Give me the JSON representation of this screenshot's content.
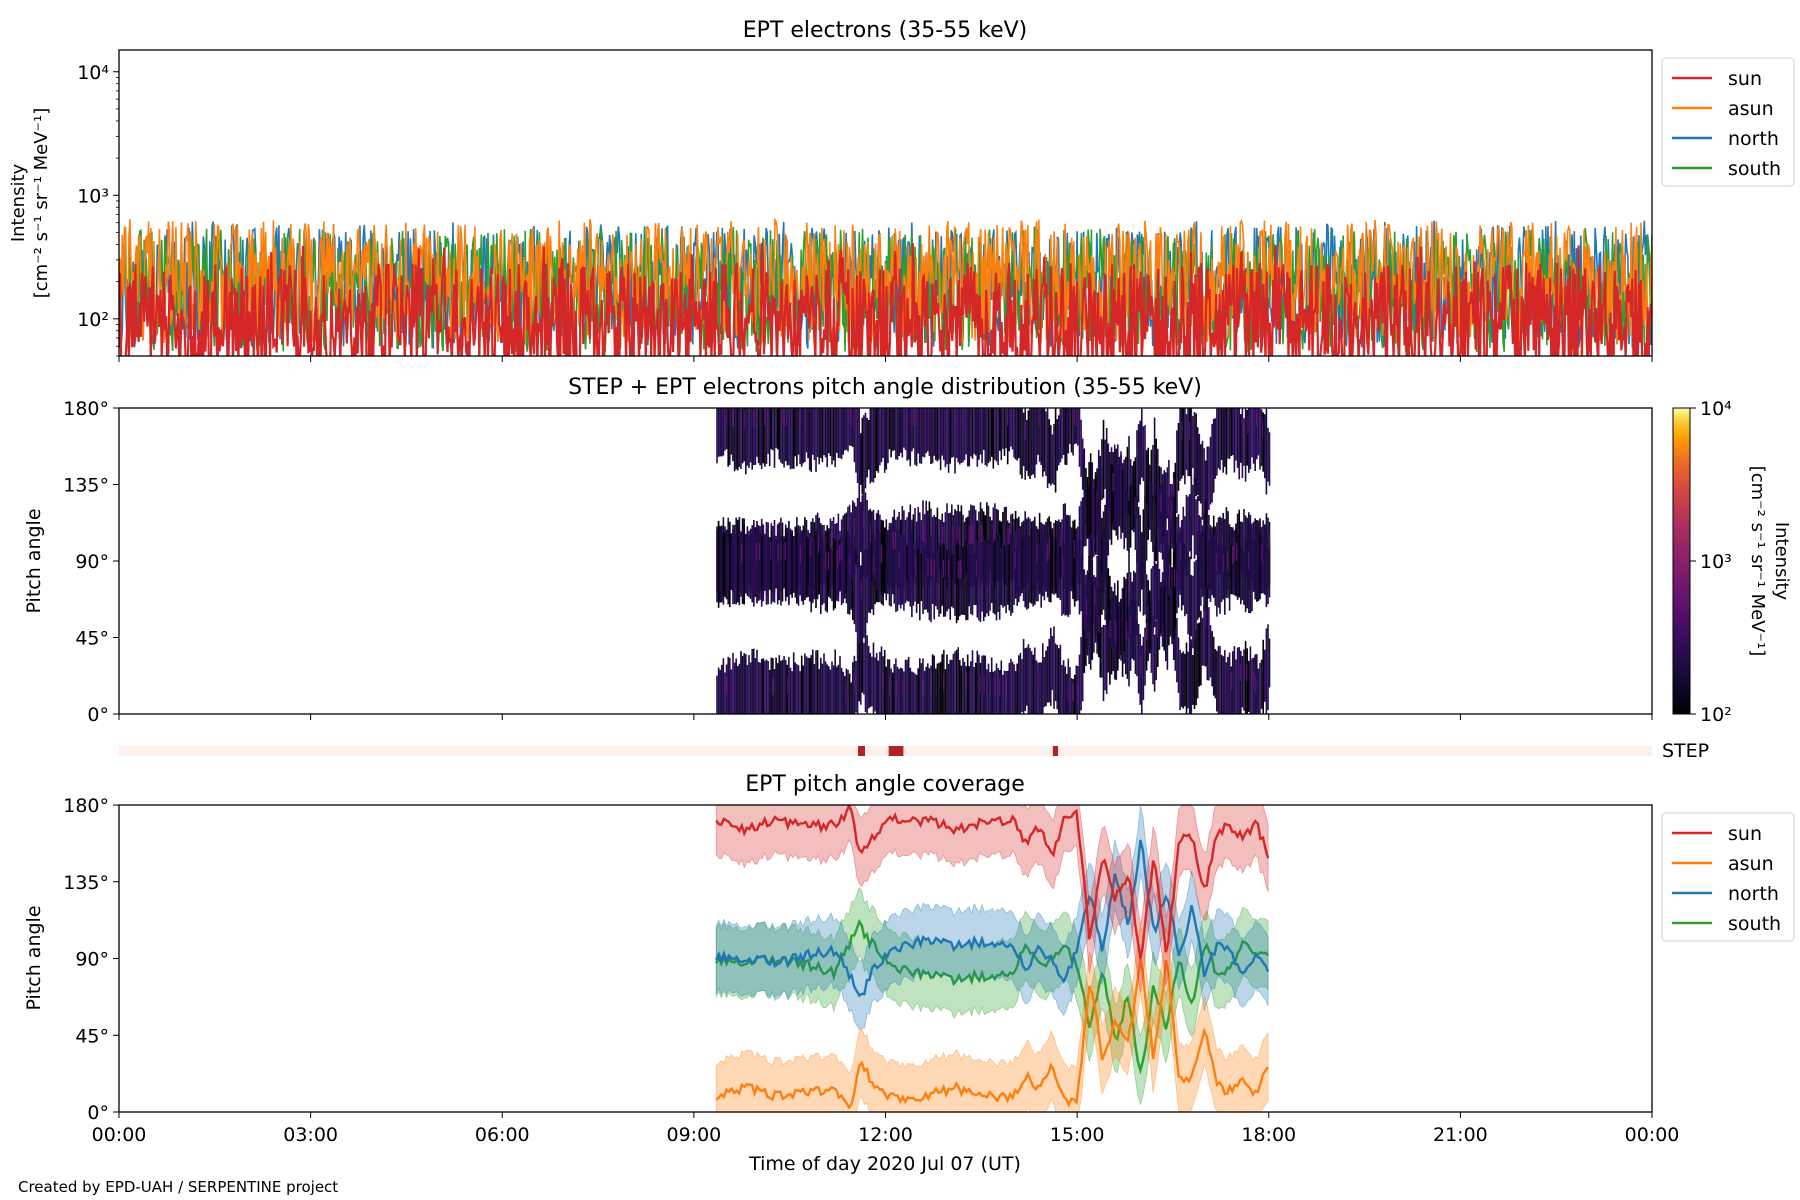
{
  "credit": "Created by EPD-UAH / SERPENTINE project",
  "colors": {
    "sun": "#d62728",
    "asun": "#ff7f0e",
    "north": "#1f77b4",
    "south": "#2ca02c",
    "step_bar": "#b22222",
    "step_bg": "#fdf0ec"
  },
  "chart_data": [
    {
      "type": "line",
      "title": "EPT electrons (35-55 keV)",
      "ylabel_line1": "Intensity",
      "ylabel_line2": "[cm⁻² s⁻¹ sr⁻¹ MeV⁻¹]",
      "yscale": "log",
      "ylim": [
        50,
        15000
      ],
      "yticks": [
        100,
        1000,
        10000
      ],
      "ytick_labels": [
        "10²",
        "10³",
        "10⁴"
      ],
      "xlim_hours": [
        0,
        24
      ],
      "legend_placement": "outside-right",
      "legend": [
        "sun",
        "asun",
        "north",
        "south"
      ],
      "series": [
        {
          "name": "sun",
          "typical": 90,
          "peak_max": 420,
          "note_values": "noisy all day, mostly 50-300"
        },
        {
          "name": "asun",
          "typical": 200,
          "peak_max": 650
        },
        {
          "name": "north",
          "typical": 180,
          "peak_max": 640
        },
        {
          "name": "south",
          "typical": 170,
          "peak_max": 560
        }
      ]
    },
    {
      "type": "heatmap",
      "title": "STEP + EPT electrons pitch angle distribution (35-55 keV)",
      "ylabel": "Pitch angle",
      "ylim": [
        0,
        180
      ],
      "yticks": [
        0,
        45,
        90,
        135,
        180
      ],
      "ytick_labels": [
        "0°",
        "45°",
        "90°",
        "135°",
        "180°"
      ],
      "xlim_hours": [
        0,
        24
      ],
      "data_coverage_hours": [
        9.35,
        18.0
      ],
      "colorbar": {
        "label_line1": "Intensity",
        "label_line2": "[cm⁻² s⁻¹ sr⁻¹ MeV⁻¹]",
        "scale": "log",
        "range": [
          100,
          10000
        ],
        "tick_labels": [
          "10²",
          "10³",
          "10⁴"
        ],
        "colormap": "inferno"
      }
    },
    {
      "type": "bar",
      "label": "STEP",
      "xlim_hours": [
        0,
        24
      ],
      "marked_intervals_hours": [
        [
          11.57,
          11.68
        ],
        [
          12.05,
          12.28
        ],
        [
          14.62,
          14.7
        ]
      ]
    },
    {
      "type": "line",
      "title": "EPT pitch angle coverage",
      "ylabel": "Pitch angle",
      "ylim": [
        0,
        180
      ],
      "yticks": [
        0,
        45,
        90,
        135,
        180
      ],
      "ytick_labels": [
        "0°",
        "45°",
        "90°",
        "135°",
        "180°"
      ],
      "xlabel": "Time of day 2020 Jul 07 (UT)",
      "xlim_hours": [
        0,
        24
      ],
      "xtick_hours": [
        0,
        3,
        6,
        9,
        12,
        15,
        18,
        21,
        24
      ],
      "xtick_labels": [
        "00:00",
        "03:00",
        "06:00",
        "09:00",
        "12:00",
        "15:00",
        "18:00",
        "21:00",
        "00:00"
      ],
      "legend_placement": "outside-right",
      "legend": [
        "sun",
        "asun",
        "north",
        "south"
      ],
      "band_halfwidth_deg": 20,
      "series": [
        {
          "name": "sun",
          "x": [
            9.35,
            9.8,
            10.3,
            10.8,
            11.2,
            11.45,
            11.6,
            11.75,
            12.1,
            12.6,
            13.1,
            13.6,
            14.0,
            14.2,
            14.4,
            14.6,
            14.8,
            15.0,
            15.2,
            15.4,
            15.6,
            15.8,
            16.0,
            16.2,
            16.4,
            16.6,
            16.8,
            17.0,
            17.2,
            17.4,
            17.6,
            17.8,
            18.0
          ],
          "y": [
            172,
            166,
            171,
            168,
            168,
            178,
            150,
            160,
            172,
            171,
            166,
            170,
            172,
            158,
            168,
            150,
            172,
            175,
            100,
            150,
            125,
            140,
            90,
            150,
            90,
            160,
            160,
            130,
            165,
            168,
            160,
            170,
            150
          ]
        },
        {
          "name": "asun",
          "x": [
            9.35,
            9.8,
            10.3,
            10.8,
            11.2,
            11.45,
            11.6,
            11.75,
            12.1,
            12.6,
            13.1,
            13.6,
            14.0,
            14.2,
            14.4,
            14.6,
            14.8,
            15.0,
            15.2,
            15.4,
            15.6,
            15.8,
            16.0,
            16.2,
            16.4,
            16.6,
            16.8,
            17.0,
            17.2,
            17.4,
            17.6,
            17.8,
            18.0
          ],
          "y": [
            8,
            14,
            9,
            12,
            12,
            2,
            30,
            20,
            8,
            9,
            14,
            10,
            8,
            22,
            12,
            30,
            8,
            5,
            80,
            30,
            55,
            40,
            90,
            30,
            90,
            20,
            20,
            50,
            15,
            12,
            20,
            10,
            30
          ]
        },
        {
          "name": "north",
          "x": [
            9.35,
            9.8,
            10.3,
            10.8,
            11.2,
            11.45,
            11.6,
            11.75,
            12.1,
            12.6,
            13.1,
            13.6,
            14.0,
            14.2,
            14.4,
            14.6,
            14.8,
            15.0,
            15.2,
            15.4,
            15.6,
            15.8,
            16.0,
            16.2,
            16.4,
            16.6,
            16.8,
            17.0,
            17.2,
            17.4,
            17.6,
            17.8,
            18.0
          ],
          "y": [
            90,
            90,
            88,
            92,
            95,
            80,
            65,
            80,
            95,
            100,
            98,
            100,
            98,
            82,
            95,
            90,
            78,
            95,
            130,
            95,
            140,
            110,
            160,
            105,
            130,
            90,
            120,
            80,
            100,
            95,
            80,
            90,
            85
          ]
        },
        {
          "name": "south",
          "x": [
            9.35,
            9.8,
            10.3,
            10.8,
            11.2,
            11.45,
            11.6,
            11.75,
            12.1,
            12.6,
            13.1,
            13.6,
            14.0,
            14.2,
            14.4,
            14.6,
            14.8,
            15.0,
            15.2,
            15.4,
            15.6,
            15.8,
            16.0,
            16.2,
            16.4,
            16.6,
            16.8,
            17.0,
            17.2,
            17.4,
            17.6,
            17.8,
            18.0
          ],
          "y": [
            88,
            88,
            90,
            86,
            82,
            100,
            110,
            100,
            85,
            80,
            78,
            80,
            82,
            98,
            85,
            90,
            100,
            85,
            50,
            85,
            40,
            70,
            20,
            75,
            50,
            90,
            60,
            100,
            80,
            85,
            100,
            90,
            95
          ]
        }
      ]
    }
  ]
}
